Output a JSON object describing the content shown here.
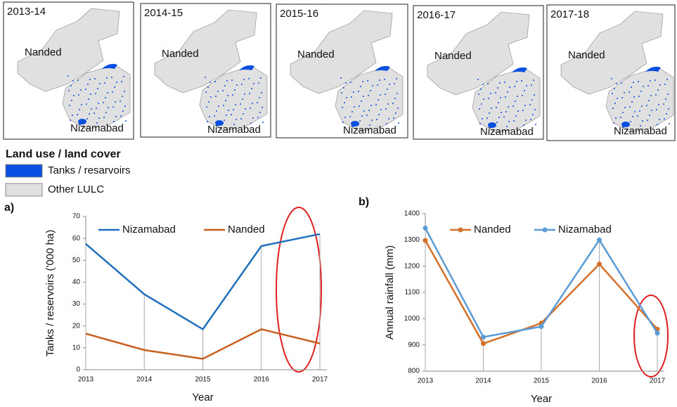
{
  "maps": [
    {
      "period": "2013-14",
      "north": "Nanded",
      "south": "Nizamabad"
    },
    {
      "period": "2014-15",
      "north": "Nanded",
      "south": "Nizamabad"
    },
    {
      "period": "2015-16",
      "north": "Nanded",
      "south": "Nizamabad"
    },
    {
      "period": "2016-17",
      "north": "Nanded",
      "south": "Nizamabad"
    },
    {
      "period": "2017-18",
      "north": "Nanded",
      "south": "Nizamabad"
    }
  ],
  "legend": {
    "title": "Land use / land cover",
    "items": [
      {
        "label": "Tanks / resarvoirs",
        "color": "#0a50e0"
      },
      {
        "label": "Other LULC",
        "color": "#e0e0e0"
      }
    ]
  },
  "chart_data": [
    {
      "type": "line",
      "panel": "a)",
      "y_label": "Tanks / reservoirs ('000 ha)",
      "x_label": "Year",
      "categories": [
        "2013",
        "2014",
        "2015",
        "2016",
        "2017"
      ],
      "series": [
        {
          "name": "Nizamabad",
          "color": "#1f6fbf",
          "values": [
            57.5,
            34.5,
            18.5,
            56.5,
            62
          ]
        },
        {
          "name": "Nanded",
          "color": "#c8601f",
          "values": [
            16.5,
            9,
            5,
            18.5,
            12
          ]
        }
      ],
      "ylim": [
        0,
        70
      ],
      "yticks": [
        0,
        10,
        20,
        30,
        40,
        50,
        60,
        70
      ],
      "markers": false
    },
    {
      "type": "line",
      "panel": "b)",
      "y_label": "Annual rainfall (mm)",
      "x_label": "Year",
      "categories": [
        "2013",
        "2014",
        "2015",
        "2016",
        "2017"
      ],
      "series": [
        {
          "name": "Nanded",
          "color": "#d4702a",
          "values": [
            1298,
            905,
            983,
            1208,
            960
          ]
        },
        {
          "name": "Nizamabad",
          "color": "#5b9bd5",
          "values": [
            1345,
            930,
            970,
            1300,
            945
          ]
        }
      ],
      "ylim": [
        800,
        1400
      ],
      "yticks": [
        800,
        900,
        1000,
        1100,
        1200,
        1300,
        1400
      ],
      "markers": true
    }
  ]
}
